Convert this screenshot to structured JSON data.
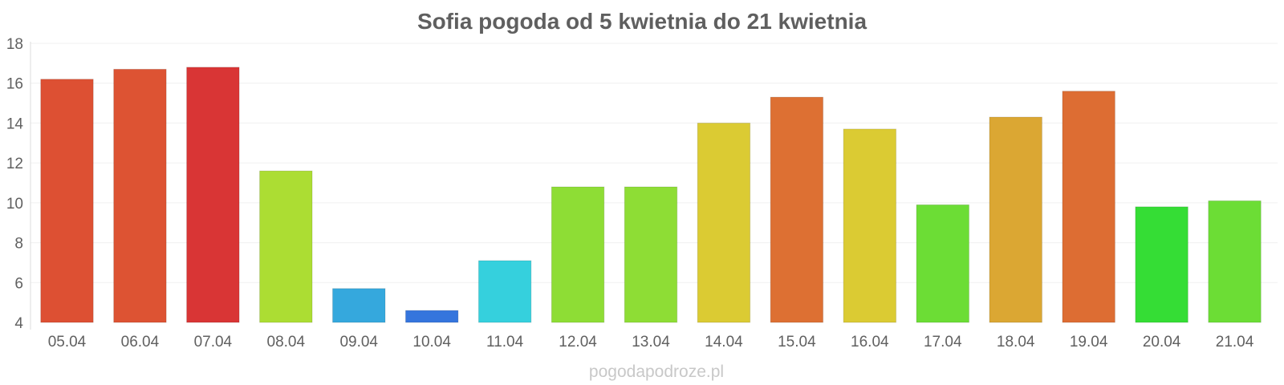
{
  "chart_data": {
    "type": "bar",
    "title": "Sofia pogoda od 5 kwietnia do 21 kwietnia",
    "categories": [
      "05.04",
      "06.04",
      "07.04",
      "08.04",
      "09.04",
      "10.04",
      "11.04",
      "12.04",
      "13.04",
      "14.04",
      "15.04",
      "16.04",
      "17.04",
      "18.04",
      "19.04",
      "20.04",
      "21.04"
    ],
    "values": [
      16.2,
      16.7,
      16.8,
      11.6,
      5.7,
      4.6,
      7.1,
      10.8,
      10.8,
      14.0,
      15.3,
      13.7,
      9.9,
      14.3,
      15.6,
      9.8,
      10.1
    ],
    "colors": [
      "#dd5033",
      "#dd5333",
      "#d93535",
      "#acdd33",
      "#35a8dd",
      "#3575dd",
      "#35d0dd",
      "#8edd35",
      "#8edd35",
      "#dbcb33",
      "#dd7033",
      "#dbcb33",
      "#6cdd35",
      "#dba733",
      "#dd6d33",
      "#35dd35",
      "#6cdd35"
    ],
    "ylim": [
      4,
      18
    ],
    "yticks": [
      4,
      6,
      8,
      10,
      12,
      14,
      16,
      18
    ],
    "xlabel": "",
    "ylabel": "",
    "grid": true,
    "legend": "none"
  },
  "watermark": "pogodapodroze.pl"
}
